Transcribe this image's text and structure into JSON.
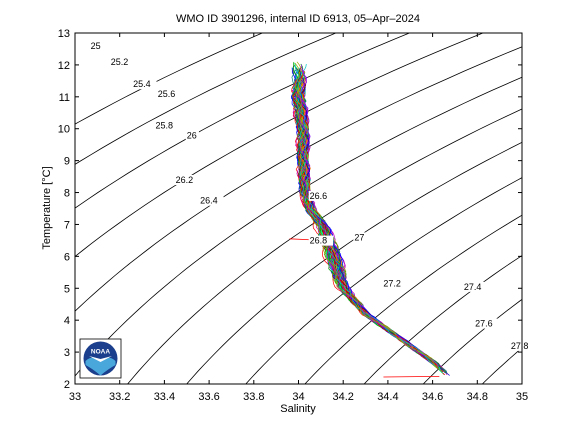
{
  "chart_data": {
    "type": "line",
    "title": "WMO ID 3901296, internal ID 6913, 05–Apr–2024",
    "xlabel": "Salinity",
    "ylabel": "Temperature [°C]",
    "xlim": [
      33,
      35
    ],
    "ylim": [
      2,
      13
    ],
    "x_ticks": [
      33,
      33.2,
      33.4,
      33.6,
      33.8,
      34,
      34.2,
      34.4,
      34.6,
      34.8,
      35
    ],
    "x_tick_labels": [
      "33",
      "33.2",
      "33.4",
      "33.6",
      "33.8",
      "34",
      "34.2",
      "34.4",
      "34.6",
      "34.8",
      "35"
    ],
    "y_ticks": [
      2,
      3,
      4,
      5,
      6,
      7,
      8,
      9,
      10,
      11,
      12,
      13
    ],
    "y_tick_labels": [
      "2",
      "3",
      "4",
      "5",
      "6",
      "7",
      "8",
      "9",
      "10",
      "11",
      "12",
      "13"
    ],
    "grid": false,
    "density_contours": {
      "levels": [
        25,
        25.2,
        25.4,
        25.6,
        25.8,
        26,
        26.2,
        26.4,
        26.6,
        26.8,
        27,
        27.2,
        27.4,
        27.6,
        27.8
      ],
      "labels": [
        {
          "text": "25",
          "S": 33.07,
          "T": 12.5
        },
        {
          "text": "25.2",
          "S": 33.16,
          "T": 12.0
        },
        {
          "text": "25.4",
          "S": 33.26,
          "T": 11.3
        },
        {
          "text": "25.6",
          "S": 33.37,
          "T": 11.0
        },
        {
          "text": "25.8",
          "S": 33.36,
          "T": 10.0
        },
        {
          "text": "26",
          "S": 33.5,
          "T": 9.7
        },
        {
          "text": "26.2",
          "S": 33.45,
          "T": 8.3
        },
        {
          "text": "26.4",
          "S": 33.56,
          "T": 7.65
        },
        {
          "text": "26.6",
          "S": 34.05,
          "T": 7.8
        },
        {
          "text": "26.8",
          "S": 34.05,
          "T": 6.4
        },
        {
          "text": "27",
          "S": 34.25,
          "T": 6.5
        },
        {
          "text": "27.2",
          "S": 34.38,
          "T": 5.05
        },
        {
          "text": "27.4",
          "S": 34.74,
          "T": 4.95
        },
        {
          "text": "27.6",
          "S": 34.79,
          "T": 3.8
        },
        {
          "text": "27.8",
          "S": 34.95,
          "T": 3.1
        }
      ]
    },
    "profiles_centerline": {
      "S": [
        34.0,
        34.0,
        34.02,
        34.02,
        34.03,
        34.05,
        34.1,
        34.13,
        34.15,
        34.17,
        34.18,
        34.2,
        34.25,
        34.3,
        34.4,
        34.5,
        34.6,
        34.67
      ],
      "T": [
        12.0,
        11.0,
        10.0,
        9.0,
        8.0,
        7.5,
        7.0,
        6.5,
        6.0,
        5.7,
        5.3,
        5.0,
        4.6,
        4.2,
        3.7,
        3.2,
        2.7,
        2.25
      ]
    },
    "logo": {
      "text": "NOAA"
    }
  }
}
